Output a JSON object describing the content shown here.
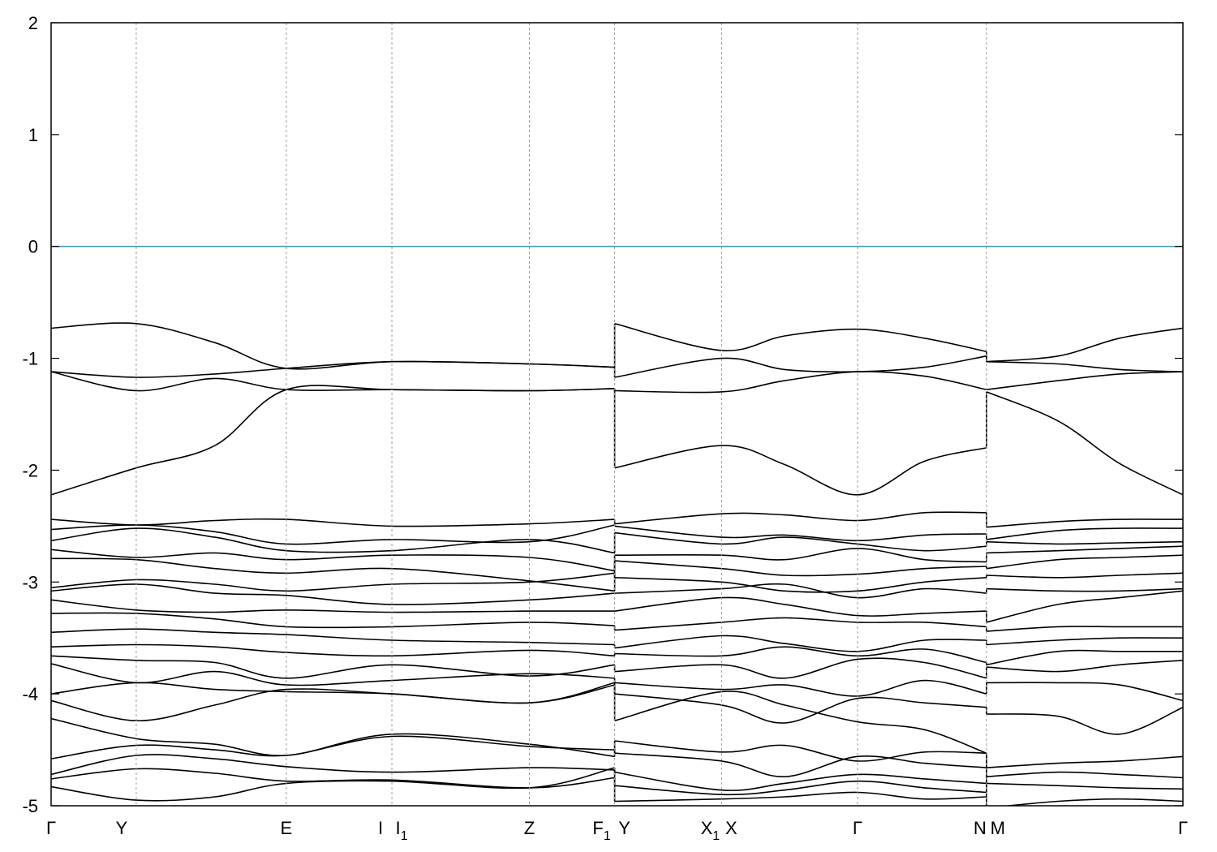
{
  "chart_data": {
    "type": "line",
    "title": "",
    "xlabel": "",
    "ylabel": "",
    "ylim": [
      -5,
      2
    ],
    "yticks": [
      -5,
      -4,
      -3,
      -2,
      -1,
      0,
      1,
      2
    ],
    "xlim": [
      0,
      1
    ],
    "grid": false,
    "fermi_level": 0,
    "fermi_color": "#3fa0b4",
    "band_color": "#000000",
    "kpoints": [
      {
        "label": "Γ",
        "sub": "",
        "x": 0.0
      },
      {
        "label": "Y",
        "sub": "",
        "x": 0.0752
      },
      {
        "label": "E",
        "sub": "",
        "x": 0.2078
      },
      {
        "label": "I",
        "sub": "",
        "x": 0.3011
      },
      {
        "label": "I",
        "sub": "1",
        "x": 0.3011
      },
      {
        "label": "Z",
        "sub": "",
        "x": 0.4226
      },
      {
        "label": "F",
        "sub": "1",
        "x": 0.4979
      },
      {
        "label": "Y",
        "sub": "",
        "x": 0.4979
      },
      {
        "label": "X",
        "sub": "1",
        "x": 0.5924
      },
      {
        "label": "X",
        "sub": "",
        "x": 0.5924
      },
      {
        "label": "Γ",
        "sub": "",
        "x": 0.7125
      },
      {
        "label": "N",
        "sub": "",
        "x": 0.8264
      },
      {
        "label": "M",
        "sub": "",
        "x": 0.8264
      },
      {
        "label": "Γ",
        "sub": "",
        "x": 1.0
      }
    ],
    "segments": [
      {
        "x_start": 0.0,
        "x_end": 0.4979,
        "x": [
          0.0,
          0.0752,
          0.1447,
          0.2078,
          0.3011,
          0.4226,
          0.4979
        ],
        "series": [
          {
            "values": [
              -0.73,
              -0.69,
              -0.86,
              -1.09,
              -1.03,
              -1.05,
              -1.08
            ]
          },
          {
            "values": [
              -1.12,
              -1.17,
              -1.14,
              -1.09,
              -1.03,
              -1.05,
              -1.08
            ]
          },
          {
            "values": [
              -1.12,
              -1.29,
              -1.18,
              -1.28,
              -1.28,
              -1.29,
              -1.27
            ]
          },
          {
            "values": [
              -2.22,
              -1.98,
              -1.78,
              -1.28,
              -1.28,
              -1.29,
              -1.27
            ]
          },
          {
            "values": [
              -2.44,
              -2.49,
              -2.45,
              -2.44,
              -2.5,
              -2.48,
              -2.44
            ]
          },
          {
            "values": [
              -2.53,
              -2.49,
              -2.55,
              -2.66,
              -2.62,
              -2.64,
              -2.49
            ]
          },
          {
            "values": [
              -2.63,
              -2.52,
              -2.6,
              -2.72,
              -2.72,
              -2.62,
              -2.74
            ]
          },
          {
            "values": [
              -2.71,
              -2.78,
              -2.74,
              -2.8,
              -2.76,
              -2.78,
              -2.9
            ]
          },
          {
            "values": [
              -2.79,
              -2.8,
              -2.88,
              -2.92,
              -2.88,
              -2.99,
              -3.08
            ]
          },
          {
            "values": [
              -3.05,
              -2.98,
              -3.02,
              -3.08,
              -3.02,
              -3.0,
              -2.92
            ]
          },
          {
            "values": [
              -3.08,
              -3.02,
              -3.1,
              -3.12,
              -3.2,
              -3.16,
              -3.1
            ]
          },
          {
            "values": [
              -3.16,
              -3.25,
              -3.27,
              -3.25,
              -3.27,
              -3.26,
              -3.26
            ]
          },
          {
            "values": [
              -3.28,
              -3.28,
              -3.33,
              -3.4,
              -3.4,
              -3.36,
              -3.39
            ]
          },
          {
            "values": [
              -3.45,
              -3.42,
              -3.45,
              -3.47,
              -3.52,
              -3.54,
              -3.56
            ]
          },
          {
            "values": [
              -3.58,
              -3.56,
              -3.58,
              -3.63,
              -3.66,
              -3.61,
              -3.66
            ]
          },
          {
            "values": [
              -3.66,
              -3.7,
              -3.72,
              -3.86,
              -3.74,
              -3.84,
              -3.74
            ]
          },
          {
            "values": [
              -3.73,
              -3.9,
              -3.8,
              -3.92,
              -3.88,
              -3.82,
              -3.86
            ]
          },
          {
            "values": [
              -4.0,
              -3.9,
              -3.96,
              -3.98,
              -4.0,
              -4.08,
              -3.9
            ]
          },
          {
            "values": [
              -4.06,
              -4.24,
              -4.1,
              -3.96,
              -4.0,
              -4.08,
              -3.92
            ]
          },
          {
            "values": [
              -4.22,
              -4.4,
              -4.45,
              -4.55,
              -4.36,
              -4.45,
              -4.56
            ]
          },
          {
            "values": [
              -4.58,
              -4.46,
              -4.5,
              -4.55,
              -4.38,
              -4.47,
              -4.5
            ]
          },
          {
            "values": [
              -4.72,
              -4.55,
              -4.58,
              -4.65,
              -4.7,
              -4.66,
              -4.68
            ]
          },
          {
            "values": [
              -4.76,
              -4.67,
              -4.71,
              -4.78,
              -4.77,
              -4.84,
              -4.75
            ]
          },
          {
            "values": [
              -4.83,
              -4.95,
              -4.92,
              -4.8,
              -4.78,
              -4.84,
              -4.66
            ]
          }
        ]
      },
      {
        "x_start": 0.4979,
        "x_end": 0.8264,
        "x": [
          0.4979,
          0.5924,
          0.6481,
          0.7125,
          0.7717,
          0.8264
        ],
        "series": [
          {
            "values": [
              -0.69,
              -0.93,
              -0.8,
              -0.74,
              -0.82,
              -0.94
            ]
          },
          {
            "values": [
              -1.17,
              -1.0,
              -1.1,
              -1.12,
              -1.08,
              -0.98
            ]
          },
          {
            "values": [
              -1.29,
              -1.3,
              -1.2,
              -1.12,
              -1.16,
              -1.28
            ]
          },
          {
            "values": [
              -1.98,
              -1.78,
              -1.95,
              -2.22,
              -1.92,
              -1.8
            ]
          },
          {
            "values": [
              -2.48,
              -2.39,
              -2.4,
              -2.45,
              -2.38,
              -2.38
            ]
          },
          {
            "values": [
              -2.5,
              -2.6,
              -2.58,
              -2.63,
              -2.58,
              -2.57
            ]
          },
          {
            "values": [
              -2.56,
              -2.66,
              -2.6,
              -2.66,
              -2.72,
              -2.68
            ]
          },
          {
            "values": [
              -2.76,
              -2.76,
              -2.8,
              -2.7,
              -2.8,
              -2.82
            ]
          },
          {
            "values": [
              -2.81,
              -2.88,
              -2.94,
              -2.93,
              -2.88,
              -2.86
            ]
          },
          {
            "values": [
              -2.96,
              -3.0,
              -3.08,
              -3.08,
              -3.0,
              -2.96
            ]
          },
          {
            "values": [
              -3.1,
              -3.06,
              -3.02,
              -3.14,
              -3.06,
              -3.1
            ]
          },
          {
            "values": [
              -3.26,
              -3.14,
              -3.2,
              -3.3,
              -3.28,
              -3.26
            ]
          },
          {
            "values": [
              -3.43,
              -3.36,
              -3.32,
              -3.36,
              -3.36,
              -3.4
            ]
          },
          {
            "values": [
              -3.59,
              -3.48,
              -3.55,
              -3.62,
              -3.52,
              -3.52
            ]
          },
          {
            "values": [
              -3.64,
              -3.66,
              -3.58,
              -3.66,
              -3.6,
              -3.72
            ]
          },
          {
            "values": [
              -3.8,
              -3.74,
              -3.86,
              -3.69,
              -3.72,
              -3.86
            ]
          },
          {
            "values": [
              -3.9,
              -3.96,
              -3.92,
              -4.02,
              -3.88,
              -4.0
            ]
          },
          {
            "values": [
              -4.0,
              -4.1,
              -4.26,
              -4.04,
              -4.08,
              -4.12
            ]
          },
          {
            "values": [
              -4.24,
              -3.98,
              -4.1,
              -4.25,
              -4.32,
              -4.53
            ]
          },
          {
            "values": [
              -4.42,
              -4.52,
              -4.46,
              -4.6,
              -4.52,
              -4.53
            ]
          },
          {
            "values": [
              -4.53,
              -4.6,
              -4.74,
              -4.56,
              -4.62,
              -4.66
            ]
          },
          {
            "values": [
              -4.7,
              -4.86,
              -4.8,
              -4.72,
              -4.76,
              -4.8
            ]
          },
          {
            "values": [
              -4.82,
              -4.9,
              -4.86,
              -4.78,
              -4.84,
              -4.88
            ]
          },
          {
            "values": [
              -4.96,
              -4.94,
              -4.92,
              -4.88,
              -4.94,
              -4.92
            ]
          }
        ]
      },
      {
        "x_start": 0.8264,
        "x_end": 1.0,
        "x": [
          0.8264,
          0.8897,
          0.944,
          1.0
        ],
        "series": [
          {
            "values": [
              -1.03,
              -0.98,
              -0.82,
              -0.73
            ]
          },
          {
            "values": [
              -1.03,
              -1.05,
              -1.1,
              -1.12
            ]
          },
          {
            "values": [
              -1.28,
              -1.2,
              -1.14,
              -1.12
            ]
          },
          {
            "values": [
              -1.3,
              -1.56,
              -1.94,
              -2.22
            ]
          },
          {
            "values": [
              -2.51,
              -2.46,
              -2.44,
              -2.44
            ]
          },
          {
            "values": [
              -2.62,
              -2.54,
              -2.52,
              -2.52
            ]
          },
          {
            "values": [
              -2.64,
              -2.66,
              -2.65,
              -2.64
            ]
          },
          {
            "values": [
              -2.74,
              -2.72,
              -2.7,
              -2.68
            ]
          },
          {
            "values": [
              -2.88,
              -2.8,
              -2.78,
              -2.76
            ]
          },
          {
            "values": [
              -2.94,
              -2.96,
              -2.94,
              -2.92
            ]
          },
          {
            "values": [
              -3.06,
              -3.08,
              -3.08,
              -3.06
            ]
          },
          {
            "values": [
              -3.36,
              -3.2,
              -3.14,
              -3.08
            ]
          },
          {
            "values": [
              -3.44,
              -3.4,
              -3.4,
              -3.4
            ]
          },
          {
            "values": [
              -3.56,
              -3.52,
              -3.5,
              -3.5
            ]
          },
          {
            "values": [
              -3.74,
              -3.62,
              -3.62,
              -3.62
            ]
          },
          {
            "values": [
              -3.76,
              -3.8,
              -3.74,
              -3.7
            ]
          },
          {
            "values": [
              -3.9,
              -3.9,
              -3.92,
              -4.06
            ]
          },
          {
            "values": [
              -4.18,
              -4.2,
              -4.36,
              -4.12
            ]
          },
          {
            "values": [
              -4.66,
              -4.62,
              -4.6,
              -4.56
            ]
          },
          {
            "values": [
              -4.74,
              -4.7,
              -4.72,
              -4.75
            ]
          },
          {
            "values": [
              -4.8,
              -4.82,
              -4.84,
              -4.85
            ]
          },
          {
            "values": [
              -5.02,
              -4.96,
              -4.94,
              -4.96
            ]
          }
        ]
      }
    ]
  }
}
